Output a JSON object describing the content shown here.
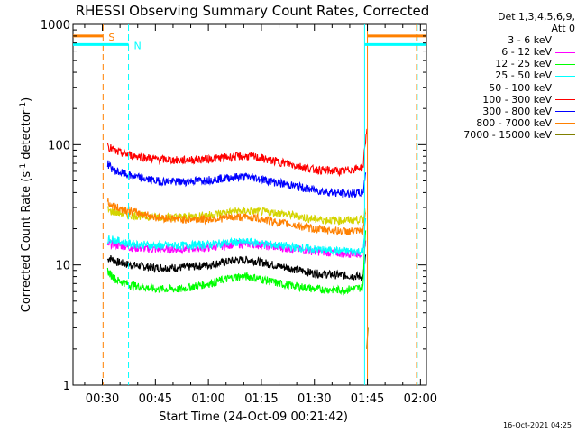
{
  "chart_data": {
    "type": "line",
    "title": "RHESSI Observing Summary Count Rates, Corrected",
    "xlabel": "Start Time (24-Oct-09 00:21:42)",
    "ylabel_parts": [
      "Corrected Count Rate (s",
      "-1",
      " detector",
      "-1",
      ")"
    ],
    "yscale": "log",
    "xlim": [
      21.7,
      121.7
    ],
    "ylim": [
      1,
      1000
    ],
    "x_ticks": [
      {
        "value": 30,
        "label": "00:30"
      },
      {
        "value": 45,
        "label": "00:45"
      },
      {
        "value": 60,
        "label": "01:00"
      },
      {
        "value": 75,
        "label": "01:15"
      },
      {
        "value": 90,
        "label": "01:30"
      },
      {
        "value": 105,
        "label": "01:45"
      },
      {
        "value": 120,
        "label": "02:00"
      }
    ],
    "y_ticks": [
      {
        "value": 1,
        "label": "1"
      },
      {
        "value": 10,
        "label": "10"
      },
      {
        "value": 100,
        "label": "100"
      },
      {
        "value": 1000,
        "label": "1000"
      }
    ],
    "detectors": "Det 1,3,4,5,6,9,",
    "attenuator": "Att 0",
    "series": [
      {
        "name": "3 - 6 keV",
        "color": "#000000",
        "x": [
          31.5,
          32,
          34,
          38,
          45,
          52,
          60,
          68,
          72,
          80,
          90,
          98,
          103.8,
          104.5
        ],
        "values": [
          11,
          11.5,
          10.6,
          10,
          9.5,
          9.5,
          10,
          11,
          11,
          9.8,
          8.5,
          8.2,
          8,
          12
        ]
      },
      {
        "name": "6 - 12 keV",
        "color": "#ff00ff",
        "x": [
          31.5,
          32,
          38,
          45,
          52,
          60,
          68,
          72,
          80,
          90,
          98,
          103.8,
          104.5
        ],
        "values": [
          14,
          15,
          14,
          13.5,
          13.5,
          14,
          15,
          15,
          14,
          13,
          12.5,
          12.5,
          16
        ]
      },
      {
        "name": "12 - 25 keV",
        "color": "#00ff00",
        "x": [
          31.5,
          32,
          34,
          38,
          45,
          52,
          60,
          68,
          72,
          80,
          90,
          98,
          103.8,
          104.5
        ],
        "values": [
          9,
          8.5,
          7.5,
          6.8,
          6.3,
          6.3,
          7,
          8,
          8,
          7,
          6.3,
          6.2,
          6.5,
          20
        ]
      },
      {
        "name": "25 - 50 keV",
        "color": "#00ffff",
        "x": [
          31.5,
          32,
          38,
          45,
          52,
          60,
          68,
          72,
          80,
          90,
          98,
          103.8,
          104.5
        ],
        "values": [
          16,
          16.5,
          15,
          14.5,
          14.5,
          14.8,
          15.5,
          15.5,
          14.5,
          13.5,
          13,
          13,
          24
        ]
      },
      {
        "name": "50 - 100 keV",
        "color": "#d4d400",
        "x": [
          31.5,
          32,
          38,
          45,
          52,
          60,
          68,
          72,
          80,
          90,
          98,
          103.8,
          104.5
        ],
        "values": [
          29,
          28,
          26,
          25,
          25,
          26,
          28,
          28,
          27,
          24,
          23.5,
          24,
          30
        ]
      },
      {
        "name": "100 - 300 keV",
        "color": "#ff0000",
        "x": [
          31.5,
          32,
          34,
          38,
          45,
          52,
          60,
          68,
          72,
          80,
          90,
          98,
          103.8,
          104.5,
          105
        ],
        "values": [
          100,
          95,
          87,
          82,
          76,
          74,
          76,
          80,
          80,
          72,
          62,
          60,
          65,
          110,
          140
        ]
      },
      {
        "name": "300 - 800 keV",
        "color": "#0000ff",
        "x": [
          31.5,
          32,
          34,
          38,
          45,
          52,
          60,
          68,
          72,
          80,
          90,
          98,
          103.8,
          104.5
        ],
        "values": [
          70,
          66,
          60,
          55,
          50,
          49,
          51,
          54,
          54,
          48,
          42,
          39,
          40,
          60
        ]
      },
      {
        "name": "800 - 7000 keV",
        "color": "#ff8000",
        "x": [
          31.5,
          32,
          34,
          38,
          45,
          52,
          60,
          68,
          72,
          80,
          90,
          98,
          103.8,
          104.5
        ],
        "values": [
          34,
          32,
          30,
          28,
          25,
          24,
          24,
          25,
          25,
          22.5,
          20,
          19,
          19,
          28
        ]
      },
      {
        "name": "7000 - 15000 keV",
        "color": "#808000",
        "x": [
          104.8,
          105.2
        ],
        "values": [
          2,
          3
        ]
      }
    ],
    "annotations": [
      {
        "label": "S",
        "color": "#ff8000",
        "x": 30.2,
        "bar_x": [
          21.7,
          30.2
        ],
        "bar_y": 800
      },
      {
        "label": "N",
        "color": "#00ffff",
        "x": 37.4,
        "bar_x": [
          21.7,
          37.4
        ],
        "bar_y": 680
      }
    ],
    "right_bars": [
      {
        "color": "#ff8000",
        "bar_x": [
          105,
          121.7
        ],
        "bar_y": 800
      },
      {
        "color": "#00ffff",
        "bar_x": [
          104.3,
          121.7
        ],
        "bar_y": 680
      }
    ],
    "vertical_lines": [
      {
        "x": 30.2,
        "color": "#ff8000",
        "dashed": true
      },
      {
        "x": 37.4,
        "color": "#00ffff",
        "dashed": true
      },
      {
        "x": 104.2,
        "color": "#00ffff",
        "dashed": false
      },
      {
        "x": 105,
        "color": "#ff8000",
        "dashed": false
      },
      {
        "x": 118.9,
        "color": "#ff8000",
        "dashed": true
      },
      {
        "x": 119.1,
        "color": "#00ffff",
        "dashed": true
      }
    ]
  },
  "timestamp": "16-Oct-2021 04:25"
}
